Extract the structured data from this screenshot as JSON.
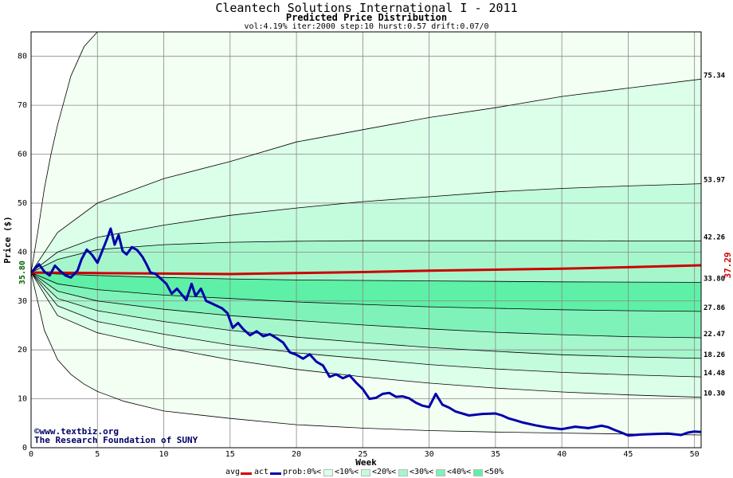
{
  "header": {
    "title": "Cleantech Solutions International I - 2011",
    "subtitle": "Predicted Price Distribution",
    "params": "vol:4.19% iter:2000 step:10 hurst:0.57 drift:0.07/0"
  },
  "watermark": {
    "line1": "©www.textbiz.org",
    "line2": "The Research Foundation of SUNY"
  },
  "legend": {
    "avg": "avg",
    "act": "act",
    "prob": "prob:0%<",
    "b10": "<10%<",
    "b20": "<20%<",
    "b30": "<30%<",
    "b40": "<40%<",
    "b50": "<50%"
  },
  "colors": {
    "avg": "#cc0000",
    "act": "#0000aa",
    "band0": "#f3fff3",
    "band10": "#dcffe9",
    "band20": "#c3fbdd",
    "band30": "#a6f6cc",
    "band40": "#7ff2b9",
    "band50": "#5ef0a6",
    "grid": "#888888"
  },
  "chart_data": {
    "type": "line",
    "xlabel": "Week",
    "ylabel": "Price ($)",
    "xlim": [
      0,
      50.5
    ],
    "ylim": [
      0,
      85
    ],
    "xticks": [
      0,
      5,
      10,
      15,
      20,
      25,
      30,
      35,
      40,
      45,
      50
    ],
    "yticks": [
      0,
      10,
      20,
      30,
      40,
      50,
      60,
      70,
      80
    ],
    "start_label": "35.80",
    "end_label": "37.29",
    "envelope": {
      "upper_x": [
        0,
        0.5,
        1,
        1.5,
        2,
        3,
        4,
        5
      ],
      "upper_y": [
        35.8,
        44,
        53,
        60,
        66,
        76,
        82,
        85
      ],
      "lower_x": [
        0,
        1,
        2,
        3,
        4,
        5,
        7,
        10,
        15,
        20,
        25,
        30,
        35,
        40,
        45,
        50.5
      ],
      "lower_y": [
        35.8,
        24,
        18,
        15,
        13,
        11.5,
        9.5,
        7.5,
        6,
        4.7,
        4,
        3.5,
        3.2,
        3,
        2.8,
        2.6
      ]
    },
    "quantile_x": [
      0,
      2,
      5,
      10,
      15,
      20,
      25,
      30,
      35,
      40,
      45,
      50.5
    ],
    "quantiles": [
      {
        "label": "75.34",
        "y": [
          35.8,
          44,
          50,
          55,
          58.5,
          62.5,
          65,
          67.5,
          69.5,
          71.8,
          73.5,
          75.34
        ]
      },
      {
        "label": "53.97",
        "y": [
          35.8,
          40,
          43,
          45.5,
          47.5,
          49,
          50.3,
          51.3,
          52.3,
          53,
          53.5,
          53.97
        ]
      },
      {
        "label": "42.26",
        "y": [
          35.8,
          38.5,
          40.5,
          41.5,
          42,
          42.2,
          42.3,
          42.3,
          42.3,
          42.3,
          42.28,
          42.26
        ]
      },
      {
        "label": "33.80",
        "y": [
          35.8,
          35.5,
          35.2,
          34.8,
          34.5,
          34.3,
          34.2,
          34.1,
          34.0,
          33.9,
          33.85,
          33.8
        ]
      },
      {
        "label": "27.86",
        "y": [
          35.8,
          33.5,
          32.3,
          31.2,
          30.5,
          29.8,
          29.3,
          28.8,
          28.5,
          28.2,
          28,
          27.86
        ]
      },
      {
        "label": "22.47",
        "y": [
          35.8,
          32,
          30,
          28.3,
          27,
          26,
          25.1,
          24.3,
          23.6,
          23.1,
          22.7,
          22.47
        ]
      },
      {
        "label": "18.26",
        "y": [
          35.8,
          30.5,
          28,
          25.8,
          24,
          22.6,
          21.5,
          20.5,
          19.7,
          19,
          18.6,
          18.26
        ]
      },
      {
        "label": "14.48",
        "y": [
          35.8,
          29,
          25.8,
          23.2,
          21,
          19.4,
          18.2,
          17,
          16.1,
          15.4,
          14.9,
          14.48
        ]
      },
      {
        "label": "10.30",
        "y": [
          35.8,
          27,
          23.5,
          20.5,
          18,
          16,
          14.5,
          13.2,
          12.2,
          11.4,
          10.8,
          10.3
        ]
      }
    ],
    "series": [
      {
        "name": "avg",
        "x": [
          0,
          5,
          10,
          15,
          20,
          25,
          30,
          35,
          40,
          45,
          50.5
        ],
        "y": [
          35.8,
          35.7,
          35.6,
          35.5,
          35.7,
          35.9,
          36.2,
          36.4,
          36.6,
          36.9,
          37.29
        ]
      },
      {
        "name": "act",
        "x": [
          0,
          0.6,
          1,
          1.4,
          1.8,
          2.2,
          2.6,
          3,
          3.5,
          3.8,
          4.2,
          4.6,
          5,
          5.3,
          5.7,
          6,
          6.3,
          6.6,
          6.9,
          7.2,
          7.6,
          8,
          8.4,
          8.7,
          9,
          9.4,
          9.8,
          10.2,
          10.6,
          11,
          11.3,
          11.7,
          12.1,
          12.4,
          12.8,
          13.2,
          13.6,
          14,
          14.4,
          14.8,
          15.2,
          15.6,
          16,
          16.5,
          17,
          17.5,
          18,
          18.5,
          19,
          19.5,
          20,
          20.5,
          21,
          21.5,
          22,
          22.5,
          23,
          23.5,
          24,
          24.5,
          25,
          25.5,
          26,
          26.5,
          27,
          27.5,
          28,
          28.5,
          29,
          29.5,
          30,
          30.5,
          31,
          31.5,
          32,
          33,
          34,
          35,
          35.5,
          36,
          36.5,
          37,
          38,
          39,
          40,
          41,
          42,
          43,
          43.5,
          44,
          44.5,
          45,
          46,
          47,
          48,
          49,
          49.5,
          50,
          50.5
        ],
        "y": [
          35.8,
          37.5,
          36,
          35.2,
          37.2,
          36.1,
          35.2,
          34.8,
          36.2,
          38.5,
          40.5,
          39.4,
          37.8,
          39.8,
          42.5,
          44.8,
          41.5,
          43.5,
          40.2,
          39.5,
          41,
          40.4,
          39,
          37.5,
          35.8,
          35.5,
          34.5,
          33.5,
          31.5,
          32.5,
          31.5,
          30.2,
          33.5,
          31,
          32.5,
          30,
          29.5,
          29,
          28.5,
          27.5,
          24.5,
          25.5,
          24.2,
          23,
          23.8,
          22.8,
          23.2,
          22.4,
          21.5,
          19.5,
          19,
          18.2,
          19.1,
          17.6,
          16.8,
          14.5,
          15,
          14.2,
          14.8,
          13.3,
          12,
          10,
          10.2,
          11,
          11.2,
          10.4,
          10.5,
          10.1,
          9.2,
          8.6,
          8.3,
          11,
          8.8,
          8.2,
          7.4,
          6.6,
          6.9,
          7,
          6.6,
          6,
          5.6,
          5.2,
          4.6,
          4.1,
          3.8,
          4.3,
          4,
          4.5,
          4.2,
          3.6,
          3.1,
          2.5,
          2.7,
          2.8,
          2.9,
          2.6,
          3.1,
          3.3,
          3.2
        ]
      }
    ],
    "grid": true,
    "legend_position": "bottom"
  }
}
